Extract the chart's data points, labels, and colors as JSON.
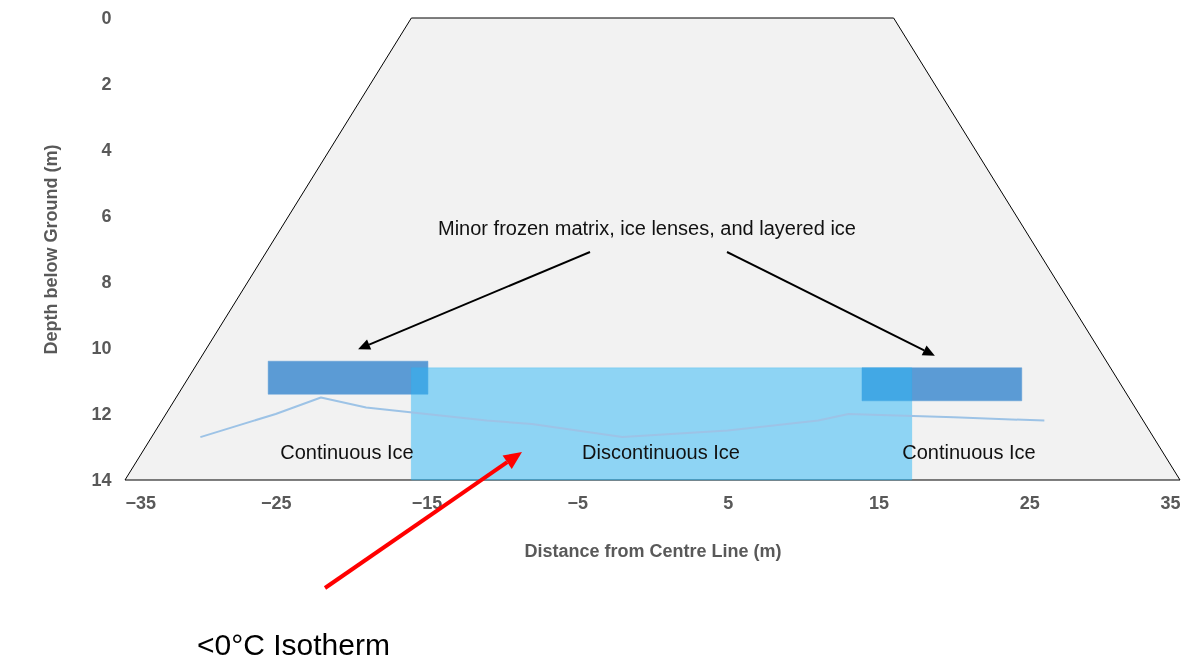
{
  "chart_data": {
    "type": "line",
    "xlabel": "Distance from Centre Line (m)",
    "ylabel": "Depth below Ground (m)",
    "xlim": [
      -35,
      35
    ],
    "xticks": [
      -35,
      -25,
      -15,
      -5,
      5,
      15,
      25,
      35
    ],
    "ylim": [
      14,
      0
    ],
    "yticks": [
      0,
      2,
      4,
      6,
      8,
      10,
      12,
      14
    ],
    "annotations": [
      "Minor frozen matrix, ice lenses, and layered ice",
      "Continuous Ice",
      "Discontinuous Ice",
      "Continuous Ice",
      "<0°C Isotherm"
    ],
    "series": [
      {
        "type": "area",
        "color": "#f2f2f2",
        "x": [
          -35,
          -16,
          16,
          35,
          -35
        ],
        "values": [
          14,
          0,
          0,
          14,
          14
        ]
      },
      {
        "type": "area",
        "color": "#5b9bd5",
        "x": [
          -25.5,
          -14.9,
          -14.9,
          -25.5,
          -25.5
        ],
        "values": [
          10.4,
          10.4,
          11.4,
          11.4,
          10.4
        ]
      },
      {
        "type": "area",
        "color": "#5b9bd5",
        "x": [
          13.9,
          24.5,
          24.5,
          13.9,
          13.9
        ],
        "values": [
          10.6,
          10.6,
          11.6,
          11.6,
          10.6
        ]
      },
      {
        "type": "area",
        "color": "#29b6f6",
        "x": [
          -16,
          17.2,
          17.2,
          -16,
          -16
        ],
        "values": [
          10.6,
          10.6,
          14,
          14,
          10.6
        ]
      },
      {
        "color": "#9dc3e6",
        "x": [
          -30,
          -25,
          -22,
          -19,
          -15,
          -11,
          -8,
          -2,
          5,
          11,
          13,
          20,
          26
        ],
        "values": [
          12.7,
          12.0,
          11.5,
          11.8,
          12.0,
          12.2,
          12.3,
          12.7,
          12.5,
          12.2,
          12.0,
          12.1,
          12.2
        ]
      }
    ]
  }
}
